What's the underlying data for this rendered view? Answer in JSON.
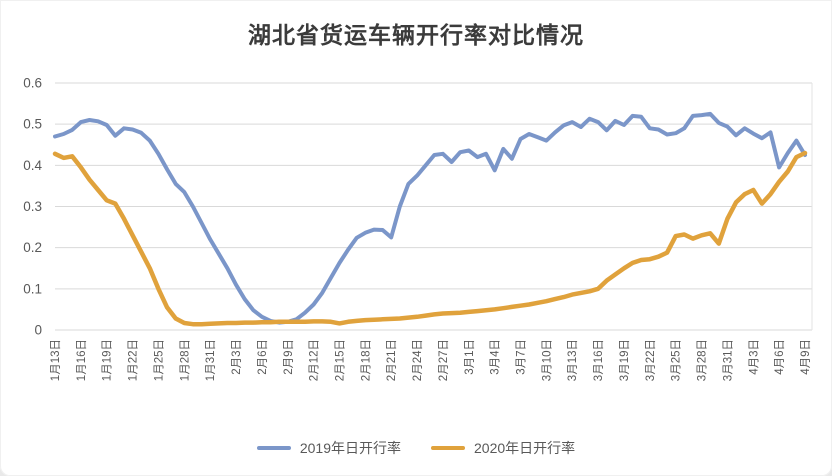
{
  "page": {
    "background_color": "#ffffff",
    "gridline_color": "#d9d9d9",
    "axis_text_color": "#595959",
    "title_color": "#3b3b3b"
  },
  "chart_data": {
    "type": "line",
    "title": "湖北省货运车辆开行率对比情况",
    "xlabel": "",
    "ylabel": "",
    "ylim": [
      0,
      0.6
    ],
    "y_tick_step": 0.1,
    "y_ticks": [
      "0.6",
      "0.5",
      "0.4",
      "0.3",
      "0.2",
      "0.1",
      "0"
    ],
    "grid": "horizontal",
    "legend_position": "bottom",
    "x_start": "1月13日",
    "x_end": "4月9日",
    "x_interval_days": 1,
    "x_point_count": 88,
    "x_tick_every": 3,
    "x_tick_labels": [
      "1月13日",
      "1月16日",
      "1月19日",
      "1月22日",
      "1月25日",
      "1月28日",
      "1月31日",
      "2月3日",
      "2月6日",
      "2月9日",
      "2月12日",
      "2月15日",
      "2月18日",
      "2月21日",
      "2月24日",
      "2月27日",
      "3月1日",
      "3月4日",
      "3月7日",
      "3月10日",
      "3月13日",
      "3月16日",
      "3月19日",
      "3月22日",
      "3月25日",
      "3月28日",
      "3月31日",
      "4月3日",
      "4月6日",
      "4月9日"
    ],
    "series": [
      {
        "name": "2019年日开行率",
        "color": "#7b96c9",
        "values": [
          0.47,
          0.476,
          0.486,
          0.505,
          0.51,
          0.507,
          0.498,
          0.472,
          0.49,
          0.487,
          0.479,
          0.46,
          0.428,
          0.39,
          0.355,
          0.335,
          0.3,
          0.26,
          0.22,
          0.185,
          0.15,
          0.11,
          0.075,
          0.048,
          0.032,
          0.022,
          0.018,
          0.02,
          0.026,
          0.042,
          0.062,
          0.09,
          0.127,
          0.163,
          0.195,
          0.224,
          0.236,
          0.244,
          0.243,
          0.225,
          0.3,
          0.355,
          0.375,
          0.4,
          0.425,
          0.428,
          0.408,
          0.432,
          0.436,
          0.42,
          0.428,
          0.388,
          0.44,
          0.416,
          0.464,
          0.476,
          0.468,
          0.46,
          0.48,
          0.497,
          0.505,
          0.493,
          0.513,
          0.505,
          0.485,
          0.508,
          0.498,
          0.52,
          0.518,
          0.49,
          0.487,
          0.475,
          0.478,
          0.49,
          0.52,
          0.522,
          0.525,
          0.503,
          0.494,
          0.473,
          0.49,
          0.477,
          0.466,
          0.48,
          0.395,
          0.43,
          0.46,
          0.425
        ]
      },
      {
        "name": "2020年日开行率",
        "color": "#e0a23c",
        "values": [
          0.428,
          0.418,
          0.422,
          0.395,
          0.365,
          0.34,
          0.315,
          0.307,
          0.27,
          0.23,
          0.19,
          0.15,
          0.1,
          0.055,
          0.028,
          0.017,
          0.014,
          0.014,
          0.015,
          0.016,
          0.017,
          0.017,
          0.018,
          0.018,
          0.019,
          0.019,
          0.02,
          0.02,
          0.02,
          0.02,
          0.021,
          0.021,
          0.02,
          0.016,
          0.02,
          0.022,
          0.024,
          0.025,
          0.026,
          0.027,
          0.028,
          0.03,
          0.032,
          0.035,
          0.038,
          0.04,
          0.041,
          0.042,
          0.044,
          0.046,
          0.048,
          0.05,
          0.053,
          0.056,
          0.059,
          0.062,
          0.066,
          0.07,
          0.075,
          0.08,
          0.086,
          0.09,
          0.094,
          0.1,
          0.12,
          0.135,
          0.15,
          0.163,
          0.17,
          0.172,
          0.178,
          0.188,
          0.228,
          0.232,
          0.222,
          0.23,
          0.235,
          0.21,
          0.27,
          0.31,
          0.33,
          0.34,
          0.307,
          0.33,
          0.36,
          0.385,
          0.42,
          0.43
        ]
      }
    ]
  }
}
